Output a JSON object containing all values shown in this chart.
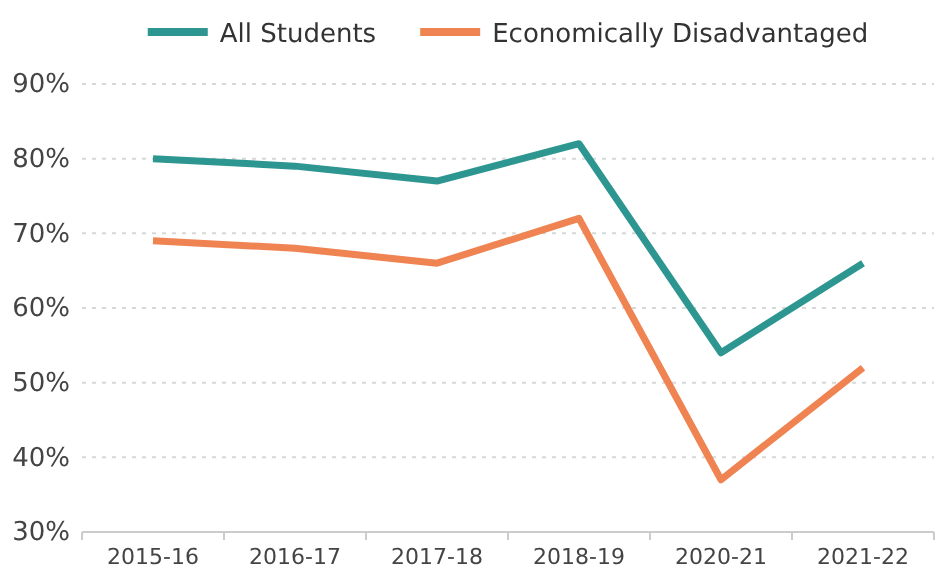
{
  "chart_data": {
    "type": "line",
    "categories": [
      "2015-16",
      "2016-17",
      "2017-18",
      "2018-19",
      "2020-21",
      "2021-22"
    ],
    "series": [
      {
        "name": "All Students",
        "color": "#2e9690",
        "values": [
          80,
          79,
          77,
          82,
          54,
          66
        ]
      },
      {
        "name": "Economically Disadvantaged",
        "color": "#ef8452",
        "values": [
          69,
          68,
          66,
          72,
          37,
          52
        ]
      }
    ],
    "ylim": [
      30,
      90
    ],
    "yticks": [
      {
        "value": 30,
        "label": "30%"
      },
      {
        "value": 40,
        "label": "40%"
      },
      {
        "value": 50,
        "label": "50%"
      },
      {
        "value": 60,
        "label": "60%"
      },
      {
        "value": 70,
        "label": "70%"
      },
      {
        "value": 80,
        "label": "80%"
      },
      {
        "value": 90,
        "label": "90%"
      }
    ],
    "grid": "y",
    "legend": "top",
    "marker": "none",
    "line_style": "solid"
  }
}
